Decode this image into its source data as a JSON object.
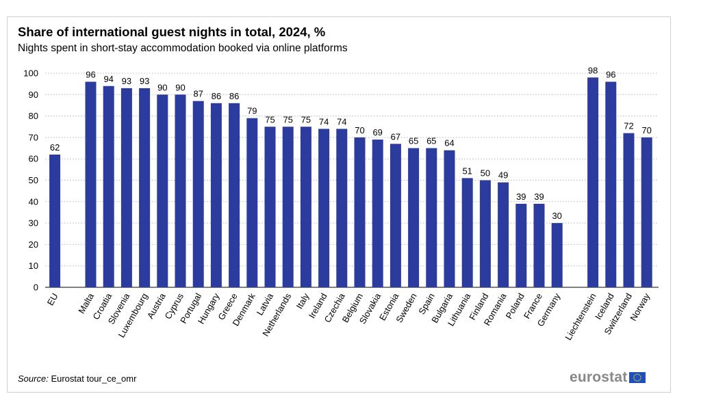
{
  "title": "Share of international guest nights in total, 2024, %",
  "subtitle": "Nights spent in short-stay accommodation booked via online platforms",
  "source": {
    "label": "Source:",
    "text": "Eurostat tour_ce_omr"
  },
  "logo": {
    "text": "eurostat",
    "icon": "eu-flag-icon"
  },
  "colors": {
    "bar": "#2b3b9e",
    "grid": "#b5b5b5",
    "axis": "#000000"
  },
  "chart_data": {
    "type": "bar",
    "title": "Share of international guest nights in total, 2024, %",
    "xlabel": "",
    "ylabel": "",
    "ylim": [
      0,
      100
    ],
    "yticks": [
      0,
      10,
      20,
      30,
      40,
      50,
      60,
      70,
      80,
      90,
      100
    ],
    "grid": true,
    "groups": [
      {
        "categories": [
          "EU"
        ],
        "values": [
          62
        ]
      },
      {
        "categories": [
          "Malta",
          "Croatia",
          "Slovenia",
          "Luxembourg",
          "Austria",
          "Cyprus",
          "Portugal",
          "Hungary",
          "Greece",
          "Denmark",
          "Latvia",
          "Netherlands",
          "Italy",
          "Ireland",
          "Czechia",
          "Belgium",
          "Slovakia",
          "Estonia",
          "Sweden",
          "Spain",
          "Bulgaria",
          "Lithuania",
          "Finland",
          "Romania",
          "Poland",
          "France",
          "Germany"
        ],
        "values": [
          96,
          94,
          93,
          93,
          90,
          90,
          87,
          86,
          86,
          79,
          75,
          75,
          75,
          74,
          74,
          70,
          69,
          67,
          65,
          65,
          64,
          51,
          50,
          49,
          39,
          39,
          30
        ]
      },
      {
        "categories": [
          "Liechtenstein",
          "Iceland",
          "Switzerland",
          "Norway"
        ],
        "values": [
          98,
          96,
          72,
          70
        ]
      }
    ],
    "label_values": [
      "62",
      "96",
      "94",
      "93",
      "93",
      "90",
      "90",
      "87",
      "86",
      "86",
      "79",
      "75",
      "75",
      "75",
      "74",
      "74",
      "70",
      "69",
      "67",
      "65",
      "65",
      "64",
      "51",
      "50",
      "49",
      "39",
      "39",
      "30",
      "98",
      "96",
      "72",
      "70"
    ]
  }
}
